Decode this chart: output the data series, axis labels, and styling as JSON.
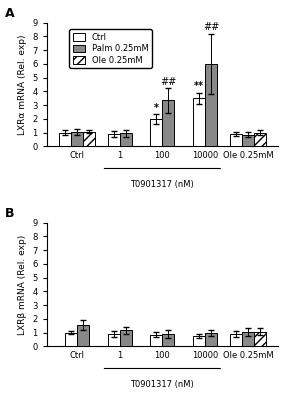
{
  "panel_A": {
    "ylabel": "LXRα mRNA (Rel. exp)",
    "xlabel": "T0901317 (nM)",
    "groups": [
      "Ctrl",
      "1",
      "100",
      "10000",
      "Ole 0.25mM"
    ],
    "ctrl_values": [
      1.0,
      0.9,
      2.0,
      3.5,
      0.9
    ],
    "palm_values": [
      1.05,
      0.95,
      3.35,
      6.0,
      0.85
    ],
    "ole_values": [
      1.05,
      null,
      null,
      null,
      1.0
    ],
    "ctrl_errors": [
      0.15,
      0.2,
      0.35,
      0.4,
      0.15
    ],
    "palm_errors": [
      0.2,
      0.25,
      0.9,
      2.2,
      0.2
    ],
    "ole_errors": [
      0.1,
      null,
      null,
      null,
      0.2
    ],
    "annotations_ctrl": [
      null,
      null,
      "*",
      "**",
      null
    ],
    "annotations_palm": [
      null,
      null,
      "##",
      "##",
      null
    ],
    "ylim": [
      0,
      9
    ],
    "yticks": [
      0,
      1,
      2,
      3,
      4,
      5,
      6,
      7,
      8,
      9
    ]
  },
  "panel_B": {
    "ylabel": "LXRβ mRNA (Rel. exp)",
    "xlabel": "T0901317 (nM)",
    "groups": [
      "Ctrl",
      "1",
      "100",
      "10000",
      "Ole 0.25mM"
    ],
    "ctrl_values": [
      1.0,
      0.9,
      0.85,
      0.75,
      0.9
    ],
    "palm_values": [
      1.55,
      1.15,
      0.9,
      0.95,
      1.05
    ],
    "ole_values": [
      null,
      null,
      null,
      null,
      1.05
    ],
    "ctrl_errors": [
      0.1,
      0.2,
      0.2,
      0.15,
      0.2
    ],
    "palm_errors": [
      0.35,
      0.25,
      0.3,
      0.2,
      0.3
    ],
    "ole_errors": [
      null,
      null,
      null,
      null,
      0.25
    ],
    "ylim": [
      0,
      9
    ],
    "yticks": [
      0,
      1,
      2,
      3,
      4,
      5,
      6,
      7,
      8,
      9
    ]
  },
  "legend_labels": [
    "Ctrl",
    "Palm 0.25mM",
    "Ole 0.25mM"
  ],
  "bar_width": 0.28,
  "ctrl_color": "#ffffff",
  "palm_color": "#888888",
  "ole_color": "#ffffff",
  "edge_color": "#000000",
  "background_color": "#ffffff",
  "fontsize_labels": 6.5,
  "fontsize_ticks": 6,
  "fontsize_legend": 6,
  "fontsize_annot": 7
}
